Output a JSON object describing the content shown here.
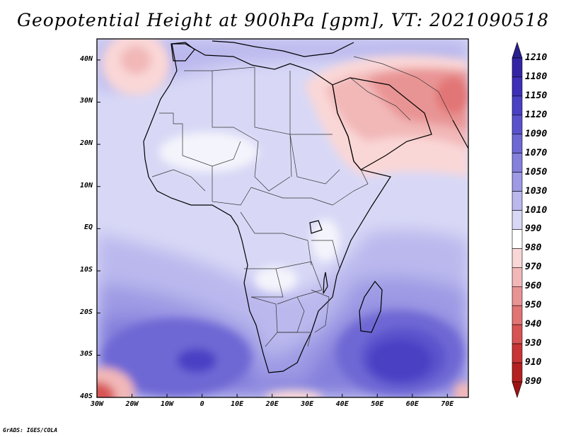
{
  "figure": {
    "title": "Geopotential Height at 900hPa [gpm], VT: 2021090518",
    "credit": "GrADS: IGES/COLA"
  },
  "map": {
    "lat_labels": [
      "40N",
      "30N",
      "20N",
      "10N",
      "EQ",
      "10S",
      "20S",
      "30S",
      "40S"
    ],
    "lon_labels": [
      "30W",
      "20W",
      "10W",
      "0",
      "10E",
      "20E",
      "30E",
      "40E",
      "50E",
      "60E",
      "70E"
    ],
    "lat_range": [
      -40,
      45
    ],
    "lon_range": [
      -30,
      76
    ]
  },
  "colorbar": {
    "labels": [
      "1210",
      "1180",
      "1150",
      "1120",
      "1090",
      "1070",
      "1050",
      "1030",
      "1010",
      "990",
      "980",
      "970",
      "960",
      "950",
      "940",
      "930",
      "910",
      "890"
    ],
    "colors": [
      "#2a1f8f",
      "#3324a6",
      "#3d2fb8",
      "#4a40c4",
      "#5a52cc",
      "#6e68d4",
      "#8580dc",
      "#9e9ae4",
      "#bab8ed",
      "#d8d8f6",
      "#ffffff",
      "#fad7d7",
      "#f2b8b8",
      "#e99494",
      "#e27474",
      "#d85454",
      "#c93434",
      "#b52020",
      "#9e1414"
    ]
  },
  "chart_data": {
    "type": "heatmap",
    "title": "Geopotential Height at 900hPa [gpm], VT: 2021090518",
    "variable": "geopotential height",
    "units": "gpm",
    "level": "900hPa",
    "valid_time": "2021090518",
    "lon_range": [
      -30,
      76
    ],
    "lat_range": [
      -40,
      45
    ],
    "levels": [
      890,
      910,
      930,
      940,
      950,
      960,
      970,
      980,
      990,
      1010,
      1030,
      1050,
      1070,
      1090,
      1120,
      1150,
      1180,
      1210
    ],
    "features": [
      {
        "name": "Subtropical high, southeast Atlantic",
        "center": [
          -3,
          -32
        ],
        "value": 1090
      },
      {
        "name": "Subtropical high, south Indian Ocean",
        "center": [
          55,
          -30
        ],
        "value": 1090
      },
      {
        "name": "Arabian / Persian heat low",
        "center": [
          68,
          33
        ],
        "value": 950
      },
      {
        "name": "Low near the Azores region",
        "center": [
          -23,
          41
        ],
        "value": 980
      },
      {
        "name": "Lows near 40S",
        "center": [
          -30,
          -40
        ],
        "value": 940
      }
    ]
  }
}
